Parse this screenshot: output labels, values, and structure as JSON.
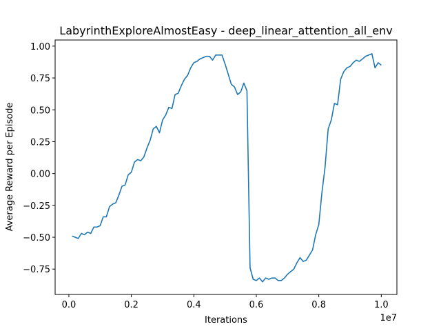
{
  "chart_data": {
    "type": "line",
    "title": "LabyrinthExploreAlmostEasy - deep_linear_attention_all_env",
    "x_label": "Iterations",
    "y_label": "Average Reward per Episode",
    "x_offset_label": "1e7",
    "color": "#1f77b4",
    "x": [
      100000,
      200000,
      300000,
      400000,
      500000,
      600000,
      700000,
      800000,
      900000,
      1000000,
      1100000,
      1200000,
      1300000,
      1400000,
      1500000,
      1600000,
      1700000,
      1800000,
      1900000,
      2000000,
      2100000,
      2200000,
      2300000,
      2400000,
      2500000,
      2600000,
      2700000,
      2800000,
      2900000,
      3000000,
      3100000,
      3200000,
      3300000,
      3400000,
      3500000,
      3600000,
      3700000,
      3800000,
      3900000,
      4000000,
      4100000,
      4200000,
      4300000,
      4400000,
      4500000,
      4600000,
      4700000,
      4800000,
      4900000,
      5000000,
      5100000,
      5200000,
      5300000,
      5400000,
      5500000,
      5600000,
      5700000,
      5800000,
      5900000,
      6000000,
      6100000,
      6200000,
      6300000,
      6400000,
      6500000,
      6600000,
      6700000,
      6800000,
      6900000,
      7000000,
      7100000,
      7200000,
      7300000,
      7400000,
      7500000,
      7600000,
      7700000,
      7800000,
      7900000,
      8000000,
      8100000,
      8200000,
      8300000,
      8400000,
      8500000,
      8600000,
      8700000,
      8800000,
      8900000,
      9000000,
      9100000,
      9200000,
      9300000,
      9400000,
      9500000,
      9600000,
      9700000,
      9800000,
      9900000,
      10000000
    ],
    "values": [
      -0.49,
      -0.5,
      -0.51,
      -0.47,
      -0.48,
      -0.46,
      -0.47,
      -0.42,
      -0.42,
      -0.41,
      -0.34,
      -0.34,
      -0.26,
      -0.24,
      -0.23,
      -0.17,
      -0.1,
      -0.09,
      -0.01,
      0.01,
      0.09,
      0.11,
      0.1,
      0.13,
      0.2,
      0.26,
      0.35,
      0.37,
      0.32,
      0.42,
      0.46,
      0.52,
      0.51,
      0.62,
      0.63,
      0.69,
      0.74,
      0.77,
      0.83,
      0.87,
      0.88,
      0.9,
      0.91,
      0.92,
      0.92,
      0.89,
      0.93,
      0.93,
      0.93,
      0.86,
      0.78,
      0.7,
      0.68,
      0.62,
      0.64,
      0.71,
      0.65,
      -0.74,
      -0.83,
      -0.84,
      -0.82,
      -0.85,
      -0.82,
      -0.83,
      -0.82,
      -0.82,
      -0.84,
      -0.84,
      -0.82,
      -0.79,
      -0.77,
      -0.75,
      -0.7,
      -0.66,
      -0.69,
      -0.68,
      -0.64,
      -0.6,
      -0.48,
      -0.4,
      -0.15,
      0.05,
      0.35,
      0.42,
      0.55,
      0.54,
      0.74,
      0.8,
      0.83,
      0.84,
      0.87,
      0.89,
      0.88,
      0.9,
      0.92,
      0.93,
      0.94,
      0.83,
      0.87,
      0.85
    ],
    "xlim": [
      -440000,
      10500000
    ],
    "ylim": [
      -0.949,
      1.048
    ],
    "xticks": [
      {
        "value": 0,
        "label": "0.0"
      },
      {
        "value": 2000000,
        "label": "0.2"
      },
      {
        "value": 4000000,
        "label": "0.4"
      },
      {
        "value": 6000000,
        "label": "0.6"
      },
      {
        "value": 8000000,
        "label": "0.8"
      },
      {
        "value": 10000000,
        "label": "1.0"
      }
    ],
    "yticks": [
      {
        "value": -0.75,
        "label": "−0.75"
      },
      {
        "value": -0.5,
        "label": "−0.50"
      },
      {
        "value": -0.25,
        "label": "−0.25"
      },
      {
        "value": 0,
        "label": "0.00"
      },
      {
        "value": 0.25,
        "label": "0.25"
      },
      {
        "value": 0.5,
        "label": "0.50"
      },
      {
        "value": 0.75,
        "label": "0.75"
      },
      {
        "value": 1,
        "label": "1.00"
      }
    ],
    "grid": false
  }
}
